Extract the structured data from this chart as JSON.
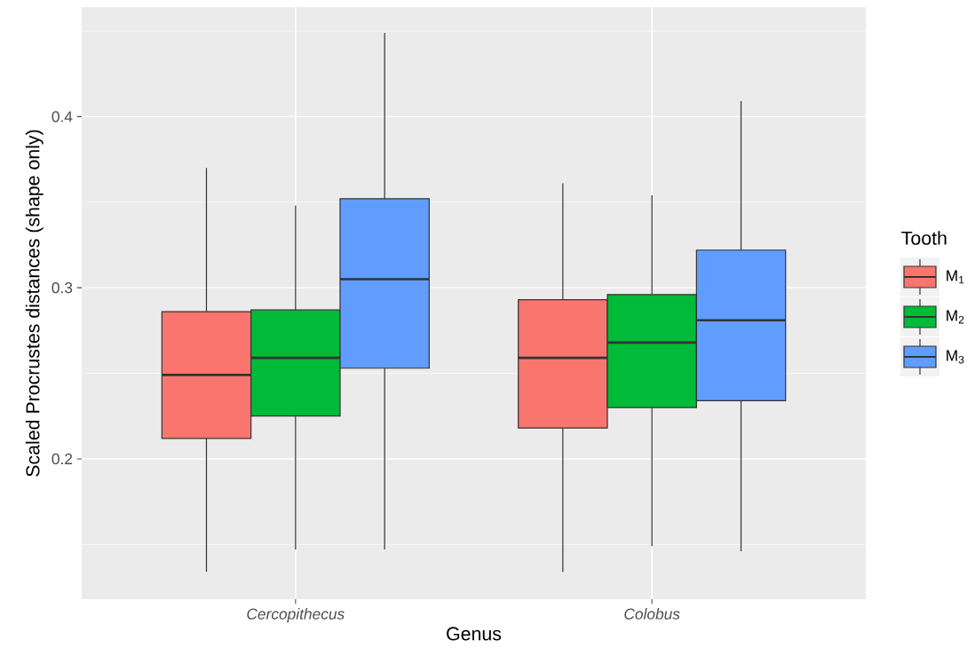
{
  "chart_data": {
    "type": "box",
    "xlabel": "Genus",
    "ylabel": "Scaled Procrustes distances (shape only)",
    "legend_title": "Tooth",
    "categories": [
      "Cercopithecus",
      "Colobus"
    ],
    "ylim": [
      0.118,
      0.464
    ],
    "yticks": [
      {
        "value": 0.15,
        "label": null
      },
      0.2,
      {
        "value": 0.25,
        "label": null
      },
      0.3,
      {
        "value": 0.35,
        "label": null
      },
      0.4,
      {
        "value": 0.45,
        "label": null
      }
    ],
    "grid": true,
    "legend": "right",
    "series": [
      {
        "name": "M$_{1}$",
        "color": "#f8766d",
        "boxes": [
          {
            "low": 0.134,
            "q1": 0.212,
            "median": 0.249,
            "q3": 0.286,
            "high": 0.37
          },
          {
            "low": 0.134,
            "q1": 0.218,
            "median": 0.259,
            "q3": 0.293,
            "high": 0.361
          }
        ]
      },
      {
        "name": "M$_{2}$",
        "color": "#00ba38",
        "boxes": [
          {
            "low": 0.147,
            "q1": 0.225,
            "median": 0.259,
            "q3": 0.287,
            "high": 0.348
          },
          {
            "low": 0.149,
            "q1": 0.23,
            "median": 0.268,
            "q3": 0.296,
            "high": 0.354
          }
        ]
      },
      {
        "name": "M$_{3}$",
        "color": "#619cff",
        "boxes": [
          {
            "low": 0.147,
            "q1": 0.253,
            "median": 0.305,
            "q3": 0.352,
            "high": 0.449
          },
          {
            "low": 0.146,
            "q1": 0.234,
            "median": 0.281,
            "q3": 0.322,
            "high": 0.409
          }
        ]
      }
    ]
  }
}
